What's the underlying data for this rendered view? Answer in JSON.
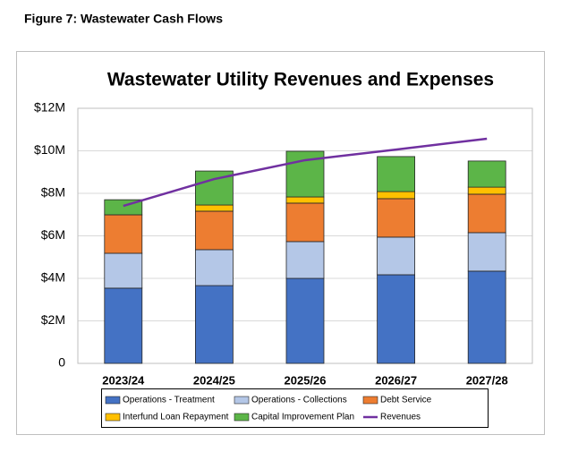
{
  "caption": "Figure 7: Wastewater Cash Flows",
  "chart_data": {
    "type": "bar",
    "stacked": true,
    "title": "Wastewater Utility Revenues and Expenses",
    "categories": [
      "2023/24",
      "2024/25",
      "2025/26",
      "2026/27",
      "2027/28"
    ],
    "series": [
      {
        "name": "Operations - Treatment",
        "color": "#4472c4",
        "values": [
          3.54,
          3.66,
          4.0,
          4.17,
          4.34
        ]
      },
      {
        "name": "Operations - Collections",
        "color": "#b4c7e7",
        "values": [
          1.64,
          1.69,
          1.73,
          1.77,
          1.81
        ]
      },
      {
        "name": "Debt Service",
        "color": "#ed7d31",
        "values": [
          1.81,
          1.81,
          1.81,
          1.81,
          1.81
        ]
      },
      {
        "name": "Interfund Loan Repayment",
        "color": "#ffc000",
        "values": [
          0,
          0.29,
          0.29,
          0.33,
          0.33
        ]
      },
      {
        "name": "Capital Improvement Plan",
        "color": "#5cb548",
        "values": [
          0.71,
          1.6,
          2.15,
          1.65,
          1.23
        ]
      },
      {
        "name": "Revenues",
        "color": "#7030a0",
        "type": "line",
        "values": [
          7.41,
          8.67,
          9.56,
          10.06,
          10.57
        ]
      }
    ],
    "ylim": [
      0,
      12
    ],
    "yticks": [
      0,
      {
        "value": 2,
        "label": "$2M"
      },
      {
        "value": 4,
        "label": "$4M"
      },
      {
        "value": 6,
        "label": "$6M"
      },
      {
        "value": 8,
        "label": "$8M"
      },
      {
        "value": 10,
        "label": "$10M"
      },
      {
        "value": 12,
        "label": "$12M"
      }
    ],
    "grid": true
  }
}
